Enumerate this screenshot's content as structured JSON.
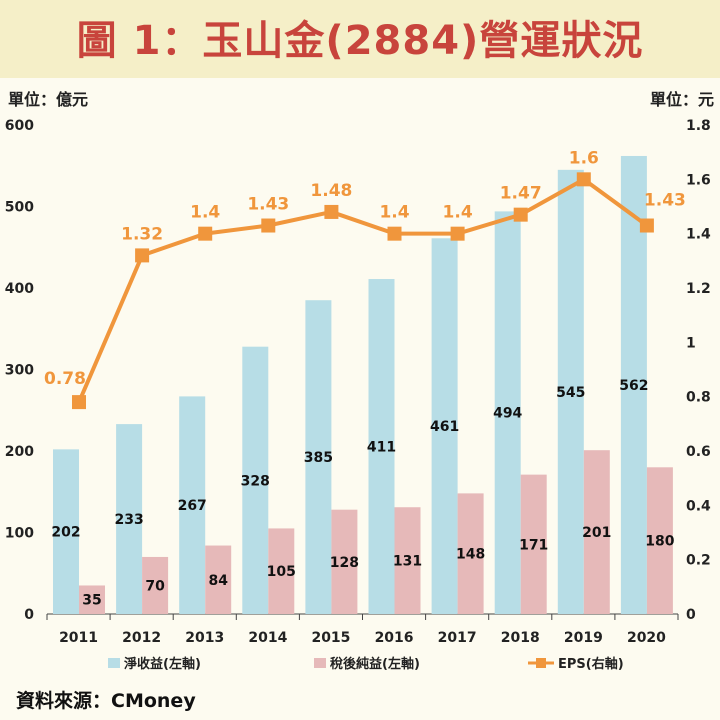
{
  "title": "圖 1：玉山金(2884)營運狀況",
  "left_unit": "單位：億元",
  "right_unit": "單位：元",
  "source": "資料來源：CMoney",
  "colors": {
    "net_revenue": "#b7dde6",
    "net_income": "#e6b9b9",
    "eps": "#f0963c",
    "title": "#c8443c"
  },
  "chart_data": {
    "type": "bar",
    "title": "圖 1：玉山金(2884)營運狀況",
    "categories": [
      "2011",
      "2012",
      "2013",
      "2014",
      "2015",
      "2016",
      "2017",
      "2018",
      "2019",
      "2020"
    ],
    "ylim": [
      0,
      600
    ],
    "yticks": [
      "0",
      "100",
      "200",
      "300",
      "400",
      "500",
      "600"
    ],
    "y2lim": [
      0,
      1.8
    ],
    "y2ticks": [
      "0",
      "0.2",
      "0.4",
      "0.6",
      "0.8",
      "1",
      "1.2",
      "1.4",
      "1.6",
      "1.8"
    ],
    "series": [
      {
        "name": "淨收益(左軸)",
        "type": "bar",
        "axis": "left",
        "values": [
          202,
          233,
          267,
          328,
          385,
          411,
          461,
          494,
          545,
          562
        ],
        "labels": [
          "202",
          "233",
          "267",
          "328",
          "385",
          "411",
          "461",
          "494",
          "545",
          "562"
        ]
      },
      {
        "name": "稅後純益(左軸)",
        "type": "bar",
        "axis": "left",
        "values": [
          35,
          70,
          84,
          105,
          128,
          131,
          148,
          171,
          201,
          180
        ],
        "labels": [
          "35",
          "70",
          "84",
          "105",
          "128",
          "131",
          "148",
          "171",
          "201",
          "180"
        ]
      },
      {
        "name": "EPS(右軸)",
        "type": "line",
        "axis": "right",
        "values": [
          0.78,
          1.32,
          1.4,
          1.43,
          1.48,
          1.4,
          1.4,
          1.47,
          1.6,
          1.43
        ],
        "labels": [
          "0.78",
          "1.32",
          "1.4",
          "1.43",
          "1.48",
          "1.4",
          "1.4",
          "1.47",
          "1.6",
          "1.43"
        ]
      }
    ]
  }
}
